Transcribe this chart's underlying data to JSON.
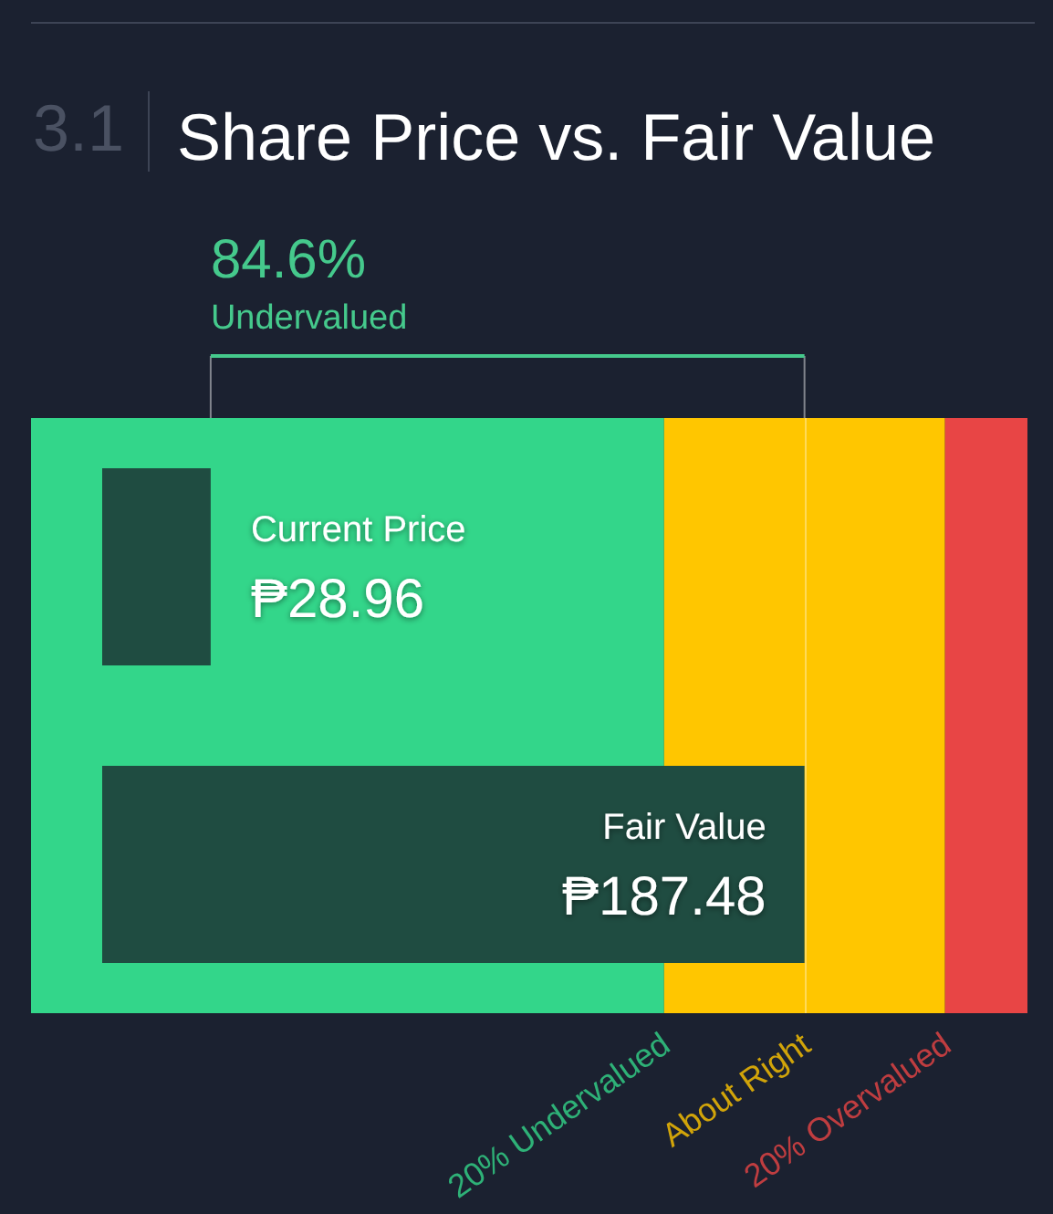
{
  "chart_data": {
    "type": "bar",
    "orientation": "horizontal",
    "title": "Share Price vs. Fair Value",
    "annotations": [
      "3.1",
      "84.6%",
      "Undervalued"
    ],
    "categories": [
      "Current Price",
      "Fair Value"
    ],
    "values": [
      28.96,
      187.48
    ],
    "value_labels": [
      "₱28.96",
      "₱187.48"
    ],
    "color": "#1f4c41",
    "xlim": [
      -19,
      247
    ],
    "bands": [
      {
        "axis": "x",
        "from": -19,
        "to": 150,
        "label": "20% Undervalued",
        "color": "#33d68a"
      },
      {
        "axis": "x",
        "from": 150,
        "to": 225,
        "label": "About Right",
        "color": "#ffc600"
      },
      {
        "axis": "x",
        "from": 225,
        "to": 247,
        "label": "20% Overvalued",
        "color": "#e84545"
      }
    ],
    "ref_lines": [
      {
        "axis": "x",
        "value": 187.48,
        "color": "#ffffff"
      }
    ],
    "tick_labels": false
  }
}
